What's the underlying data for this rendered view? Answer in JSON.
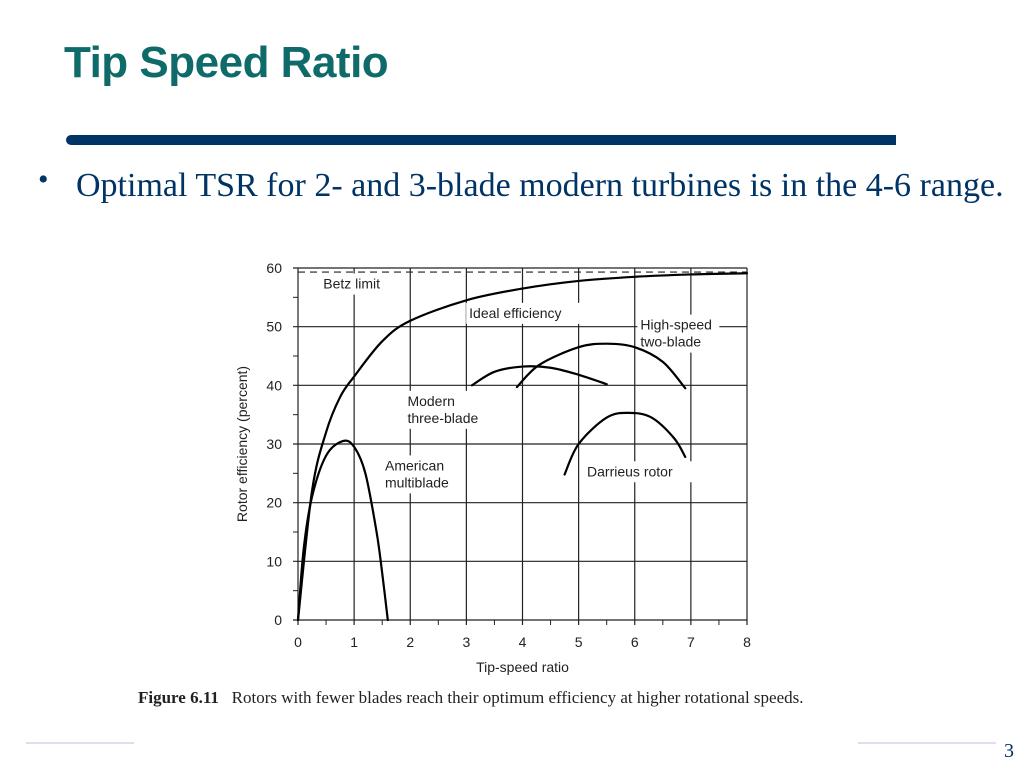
{
  "slide": {
    "title": "Tip Speed Ratio",
    "bullets": [
      {
        "text": "Optimal TSR for 2- and 3-blade modern turbines is in the 4-6 range."
      }
    ],
    "caption": {
      "label": "Figure 6.11",
      "text": "Rotors with fewer blades reach their optimum efficiency at higher rotational speeds."
    },
    "page_number": "3",
    "colors": {
      "title": "#0e6b6a",
      "rule": "#003366",
      "body_text": "#003366",
      "footer_line": "#e6dcf0"
    }
  },
  "chart_data": {
    "type": "line",
    "title": "",
    "xlabel": "Tip-speed ratio",
    "ylabel": "Rotor efficiency (percent)",
    "xlim": [
      0,
      8
    ],
    "ylim": [
      0,
      60
    ],
    "xticks": [
      "0",
      "1",
      "2",
      "3",
      "4",
      "5",
      "6",
      "7",
      "8"
    ],
    "yticks": [
      "0",
      "10",
      "20",
      "30",
      "40",
      "50",
      "60"
    ],
    "grid": true,
    "reference_lines": [
      {
        "name": "Betz limit",
        "y": 59.3,
        "style": "dashed"
      }
    ],
    "series": [
      {
        "name": "Ideal efficiency",
        "x": [
          0,
          0.25,
          0.5,
          0.75,
          1.0,
          1.5,
          2.0,
          3.0,
          4.0,
          5.0,
          6.0,
          7.0,
          8.0
        ],
        "y": [
          0,
          22,
          32,
          38,
          41.5,
          47.5,
          51,
          54.5,
          56.5,
          57.8,
          58.5,
          58.9,
          59.1
        ]
      },
      {
        "name": "American multiblade",
        "x": [
          0,
          0.1,
          0.25,
          0.5,
          0.8,
          1.0,
          1.2,
          1.4,
          1.5,
          1.6
        ],
        "y": [
          0,
          12,
          21,
          28,
          30.5,
          29.5,
          25,
          15,
          8,
          0
        ]
      },
      {
        "name": "Modern three-blade",
        "x": [
          3.1,
          3.5,
          4.0,
          4.5,
          5.0,
          5.5
        ],
        "y": [
          40,
          42.3,
          43.2,
          43,
          41.8,
          40.2
        ]
      },
      {
        "name": "High-speed two-blade",
        "x": [
          3.9,
          4.3,
          5.0,
          5.5,
          6.0,
          6.5,
          6.9
        ],
        "y": [
          39.7,
          43.5,
          46.5,
          47.1,
          46.5,
          44,
          39.5
        ]
      },
      {
        "name": "Darrieus rotor",
        "x": [
          4.75,
          5.0,
          5.5,
          5.9,
          6.3,
          6.7,
          6.9
        ],
        "y": [
          24.8,
          30,
          34.5,
          35.3,
          34.5,
          31,
          27.8
        ]
      }
    ],
    "annotations": [
      {
        "text": "Betz limit",
        "x": 0.45,
        "y": 56.5
      },
      {
        "text": "Ideal efficiency",
        "x": 3.05,
        "y": 51.5
      },
      {
        "text": [
          "High-speed",
          "two-blade"
        ],
        "x": 6.1,
        "y": 49.5
      },
      {
        "text": [
          "Modern",
          "three-blade"
        ],
        "x": 1.95,
        "y": 36.5
      },
      {
        "text": [
          "American",
          "multiblade"
        ],
        "x": 1.55,
        "y": 25.5
      },
      {
        "text": "Darrieus rotor",
        "x": 5.15,
        "y": 24.5
      }
    ]
  }
}
